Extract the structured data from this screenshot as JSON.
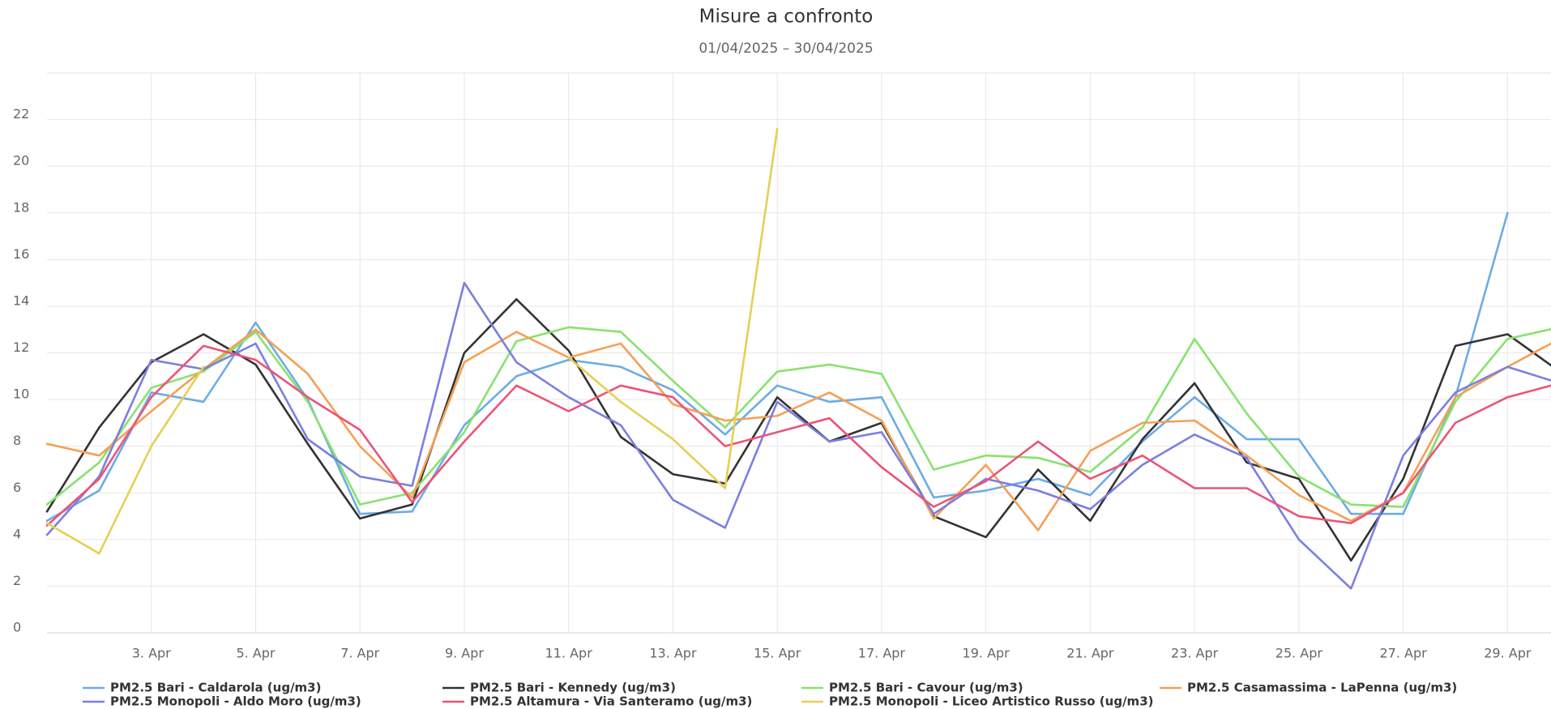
{
  "chart_data": {
    "type": "line",
    "title": "Misure a confronto",
    "subtitle": "01/04/2025 – 30/04/2025",
    "categories": [
      null,
      null,
      "3. Apr",
      null,
      "5. Apr",
      null,
      "7. Apr",
      null,
      "9. Apr",
      null,
      "11. Apr",
      null,
      "13. Apr",
      null,
      "15. Apr",
      null,
      "17. Apr",
      null,
      "19. Apr",
      null,
      "21. Apr",
      null,
      "23. Apr",
      null,
      "25. Apr",
      null,
      "27. Apr",
      null,
      "29. Apr",
      null
    ],
    "ylim": [
      0,
      24
    ],
    "yticks": [
      0,
      2,
      4,
      6,
      8,
      10,
      12,
      14,
      16,
      18,
      20,
      22
    ],
    "grid": true,
    "legend": "bottom",
    "series": [
      {
        "name": "PM2.5 Bari - Caldarola (ug/m3)",
        "color": "#6cace4",
        "values": [
          4.8,
          6.1,
          10.3,
          9.9,
          13.3,
          10.0,
          5.1,
          5.2,
          8.9,
          11.0,
          11.7,
          11.4,
          10.4,
          8.5,
          10.6,
          9.9,
          10.1,
          5.8,
          6.1,
          6.6,
          5.9,
          8.2,
          10.1,
          8.3,
          8.3,
          5.1,
          5.1,
          10.1,
          18.0,
          null
        ]
      },
      {
        "name": "PM2.5 Bari - Kennedy (ug/m3)",
        "color": "#333333",
        "values": [
          5.2,
          8.8,
          11.6,
          12.8,
          11.5,
          8.1,
          4.9,
          5.5,
          12.0,
          14.3,
          12.1,
          8.4,
          6.8,
          6.4,
          10.1,
          8.2,
          9.0,
          5.0,
          4.1,
          7.0,
          4.8,
          8.3,
          10.7,
          7.3,
          6.6,
          3.1,
          6.6,
          12.3,
          12.8,
          11.2
        ]
      },
      {
        "name": "PM2.5 Bari - Cavour (ug/m3)",
        "color": "#88e26f",
        "values": [
          5.5,
          7.3,
          10.5,
          11.2,
          12.9,
          9.9,
          5.5,
          6.0,
          8.6,
          12.5,
          13.1,
          12.9,
          10.8,
          8.8,
          11.2,
          11.5,
          11.1,
          7.0,
          7.6,
          7.5,
          6.9,
          8.8,
          12.6,
          9.4,
          6.7,
          5.5,
          5.4,
          9.9,
          12.6,
          13.1
        ]
      },
      {
        "name": "PM2.5 Casamassima - LaPenna (ug/m3)",
        "color": "#f5a055",
        "values": [
          8.1,
          7.6,
          9.5,
          11.3,
          13.0,
          11.1,
          8.0,
          5.8,
          11.6,
          12.9,
          11.8,
          12.4,
          9.8,
          9.1,
          9.3,
          10.3,
          9.1,
          4.9,
          7.2,
          4.4,
          7.8,
          9.0,
          9.1,
          7.6,
          5.9,
          4.8,
          6.0,
          10.1,
          11.4,
          12.6
        ]
      },
      {
        "name": "PM2.5 Monopoli - Aldo Moro (ug/m3)",
        "color": "#7b7fe0",
        "values": [
          4.2,
          6.7,
          11.7,
          11.3,
          12.4,
          8.3,
          6.7,
          6.3,
          15.0,
          11.6,
          10.1,
          8.9,
          5.7,
          4.5,
          9.9,
          8.2,
          8.6,
          5.1,
          6.6,
          6.1,
          5.3,
          7.2,
          8.5,
          7.5,
          4.0,
          1.9,
          7.6,
          10.3,
          11.4,
          10.7
        ]
      },
      {
        "name": "PM2.5 Altamura - Via Santeramo (ug/m3)",
        "color": "#eb5479",
        "values": [
          4.6,
          6.6,
          10.1,
          12.3,
          11.7,
          10.1,
          8.7,
          5.6,
          8.2,
          10.6,
          9.5,
          10.6,
          10.1,
          8.0,
          8.6,
          9.2,
          7.1,
          5.4,
          6.5,
          8.2,
          6.6,
          7.6,
          6.2,
          6.2,
          5.0,
          4.7,
          6.0,
          9.0,
          10.1,
          10.7
        ]
      },
      {
        "name": "PM2.5 Monopoli - Liceo Artistico Russo (ug/m3)",
        "color": "#e6cf55",
        "values": [
          4.7,
          3.4,
          8.0,
          11.4,
          null,
          null,
          null,
          null,
          null,
          null,
          11.8,
          9.9,
          8.3,
          6.2,
          21.6,
          null,
          null,
          null,
          null,
          null,
          null,
          null,
          null,
          null,
          null,
          null,
          null,
          null,
          null,
          null
        ]
      }
    ]
  }
}
